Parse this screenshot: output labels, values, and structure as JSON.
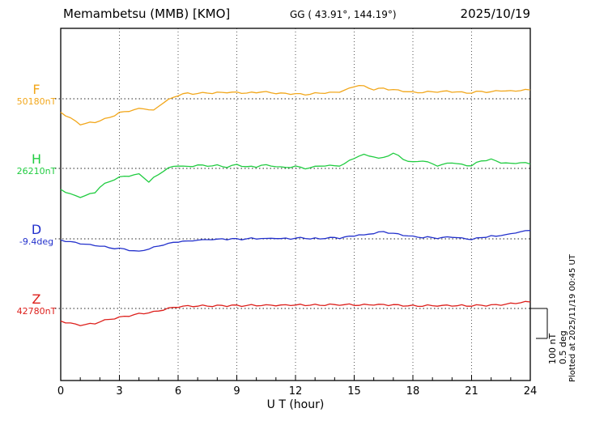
{
  "header": {
    "station": "Memambetsu (MMB)  [KMO]",
    "gg": "GG ( 43.91°, 144.19°)",
    "date": "2025/10/19"
  },
  "footer_note": "Plotted at 2025/11/19 00:45 UT",
  "scale_bar": {
    "nT_label": "100 nT",
    "deg_label": "0.5 deg",
    "nT": 100,
    "deg": 0.5
  },
  "chart_data": {
    "type": "line",
    "title": "Memambetsu (MMB) [KMO] magnetogram 2025/10/19",
    "xlabel": "U T (hour)",
    "x_start": 0,
    "x_end": 24,
    "x_step": 0.25,
    "xticks": [
      0,
      3,
      6,
      9,
      12,
      15,
      18,
      21,
      24
    ],
    "grid": "vertical-dotted-every-3h",
    "series": [
      {
        "name": "F",
        "baseline_label": "50180nT",
        "baseline_value": 50180,
        "unit": "nT",
        "color": "#f2a71b",
        "values": [
          -45,
          -55,
          -65,
          -75,
          -85,
          -83,
          -80,
          -78,
          -73,
          -68,
          -62,
          -55,
          -47,
          -44,
          -40,
          -37,
          -34,
          -32,
          -36,
          -40,
          -25,
          -12,
          -4,
          4,
          12,
          16,
          18,
          17,
          18,
          19,
          20,
          19,
          20,
          21,
          22,
          21,
          21,
          20,
          19,
          20,
          21,
          24,
          22,
          20,
          19,
          18,
          17,
          17,
          17,
          15,
          14,
          16,
          18,
          19,
          20,
          20,
          21,
          24,
          28,
          34,
          42,
          45,
          41,
          36,
          31,
          33,
          35,
          32,
          30,
          28,
          26,
          24,
          21,
          21,
          22,
          23,
          23,
          24,
          24,
          25,
          24,
          23,
          21,
          20,
          20,
          23,
          25,
          23,
          22,
          26,
          28,
          26,
          25,
          27,
          28,
          29,
          30
        ]
      },
      {
        "name": "H",
        "baseline_label": "26210nT",
        "baseline_value": 26210,
        "unit": "nT",
        "color": "#21cc41",
        "values": [
          -70,
          -78,
          -86,
          -92,
          -95,
          -91,
          -86,
          -80,
          -62,
          -52,
          -44,
          -36,
          -30,
          -27,
          -24,
          -22,
          -20,
          -30,
          -45,
          -32,
          -20,
          -8,
          0,
          6,
          10,
          7,
          5,
          8,
          12,
          9,
          8,
          10,
          10,
          6,
          5,
          9,
          12,
          9,
          6,
          5,
          5,
          12,
          10,
          8,
          8,
          4,
          2,
          5,
          8,
          2,
          0,
          3,
          5,
          8,
          10,
          9,
          8,
          10,
          15,
          25,
          35,
          42,
          45,
          42,
          40,
          32,
          36,
          44,
          50,
          42,
          32,
          24,
          20,
          24,
          26,
          20,
          15,
          10,
          12,
          16,
          20,
          16,
          12,
          10,
          10,
          18,
          25,
          28,
          30,
          24,
          20,
          18,
          15,
          18,
          20,
          17,
          15
        ]
      },
      {
        "name": "D",
        "baseline_label": "-9.4deg",
        "baseline_value": -9.4,
        "unit": "deg",
        "color": "#2230cc",
        "values": [
          -0.02,
          -0.04,
          -0.05,
          -0.06,
          -0.08,
          -0.09,
          -0.1,
          -0.11,
          -0.12,
          -0.13,
          -0.15,
          -0.16,
          -0.16,
          -0.17,
          -0.19,
          -0.2,
          -0.21,
          -0.19,
          -0.17,
          -0.14,
          -0.12,
          -0.1,
          -0.08,
          -0.06,
          -0.05,
          -0.04,
          -0.04,
          -0.03,
          -0.02,
          -0.02,
          -0.01,
          -0.01,
          -0.01,
          0,
          -0.01,
          0,
          0,
          -0.01,
          0,
          0.01,
          0,
          0.01,
          0,
          0.01,
          0.01,
          0,
          0.01,
          0,
          0.01,
          0.02,
          0.01,
          0,
          0.01,
          0,
          0.01,
          0.02,
          0.02,
          0.01,
          0.03,
          0.04,
          0.05,
          0.07,
          0.06,
          0.08,
          0.09,
          0.11,
          0.12,
          0.1,
          0.09,
          0.08,
          0.06,
          0.05,
          0.04,
          0.03,
          0.02,
          0.03,
          0.02,
          0.01,
          0.02,
          0.03,
          0.03,
          0.02,
          0.01,
          0,
          -0.01,
          0.01,
          0.02,
          0.03,
          0.05,
          0.04,
          0.06,
          0.07,
          0.08,
          0.1,
          0.12,
          0.13,
          0.14
        ]
      },
      {
        "name": "Z",
        "baseline_label": "42780nT",
        "baseline_value": 42780,
        "unit": "nT",
        "color": "#dd1f1b",
        "values": [
          -42,
          -46,
          -50,
          -53,
          -55,
          -54,
          -52,
          -50,
          -44,
          -40,
          -36,
          -33,
          -30,
          -27,
          -24,
          -21,
          -18,
          -16,
          -14,
          -12,
          -8,
          -4,
          0,
          3,
          6,
          7,
          8,
          8,
          8,
          9,
          9,
          8,
          9,
          10,
          9,
          10,
          10,
          9,
          10,
          11,
          10,
          11,
          10,
          11,
          11,
          10,
          11,
          12,
          11,
          12,
          11,
          12,
          12,
          11,
          12,
          13,
          12,
          13,
          12,
          13,
          12,
          11,
          12,
          13,
          13,
          12,
          13,
          12,
          12,
          11,
          10,
          9,
          9,
          8,
          9,
          10,
          9,
          10,
          9,
          10,
          10,
          9,
          10,
          9,
          9,
          10,
          11,
          10,
          11,
          12,
          13,
          14,
          16,
          18,
          20,
          21,
          22
        ]
      }
    ]
  }
}
